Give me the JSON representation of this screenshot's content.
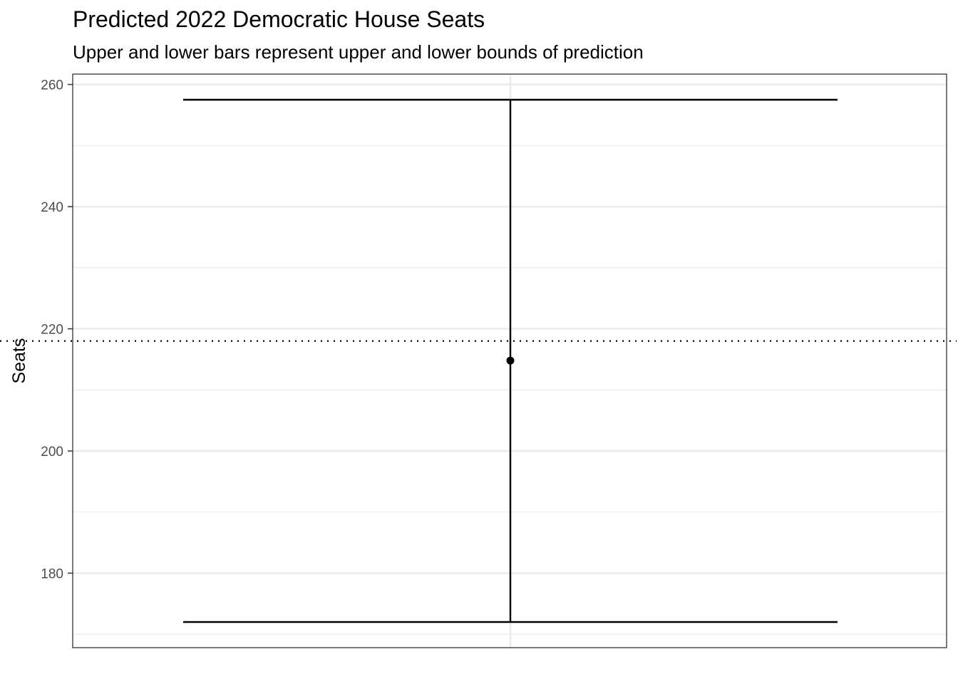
{
  "chart_data": {
    "type": "errorbar",
    "title": "Predicted 2022 Democratic House Seats",
    "subtitle": "Upper and lower bars represent upper and lower bounds of prediction",
    "xlabel": "",
    "ylabel": "Seats",
    "ylim": [
      167.8,
      261.7
    ],
    "y_ticks": [
      180,
      200,
      220,
      240,
      260
    ],
    "y_tick_labels": [
      "180",
      "200",
      "220",
      "240",
      "260"
    ],
    "y_minor_ticks": [
      170,
      190,
      210,
      230,
      250
    ],
    "grid": true,
    "points": [
      {
        "estimate": 214.8,
        "lower": 172.0,
        "upper": 257.5
      }
    ],
    "reference_line": {
      "y": 218,
      "style": "dotted"
    },
    "colors": {
      "mark": "#000000",
      "grid": "#ebebeb",
      "panel_border": "#333333"
    }
  }
}
